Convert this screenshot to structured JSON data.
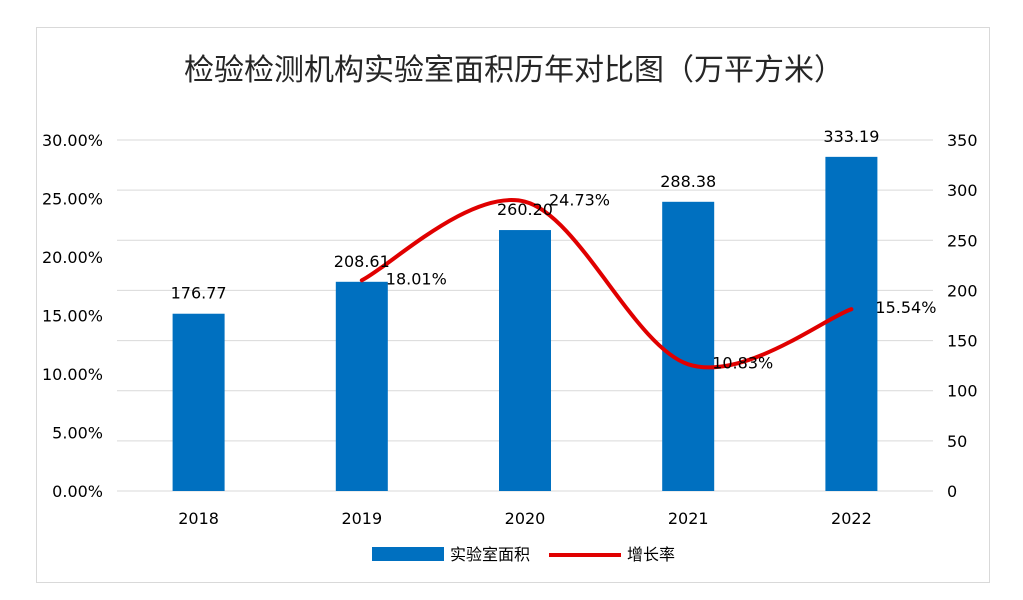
{
  "chart_data": {
    "type": "bar",
    "title": "检验检测机构实验室面积历年对比图（万平方米）",
    "categories": [
      "2018",
      "2019",
      "2020",
      "2021",
      "2022"
    ],
    "series": [
      {
        "name": "实验室面积",
        "type": "bar",
        "axis": "right",
        "values": [
          176.77,
          208.61,
          260.2,
          288.38,
          333.19
        ],
        "labels": [
          "176.77",
          "208.61",
          "260.20",
          "288.38",
          "333.19"
        ]
      },
      {
        "name": "增长率",
        "type": "line",
        "axis": "left",
        "values": [
          null,
          18.01,
          24.73,
          10.83,
          15.54
        ],
        "labels": [
          "",
          "18.01%",
          "24.73%",
          "10.83%",
          "15.54%"
        ]
      }
    ],
    "left_axis": {
      "ylim": [
        0,
        30
      ],
      "ticks": [
        "0.00%",
        "5.00%",
        "10.00%",
        "15.00%",
        "20.00%",
        "25.00%",
        "30.00%"
      ]
    },
    "right_axis": {
      "ylim": [
        0,
        350
      ],
      "ticks": [
        "0",
        "50",
        "100",
        "150",
        "200",
        "250",
        "300",
        "350"
      ]
    },
    "grid": true,
    "legend": "bottom",
    "colors": {
      "bar": "#0070c0",
      "line": "#e00000",
      "grid": "#d9d9d9"
    }
  }
}
